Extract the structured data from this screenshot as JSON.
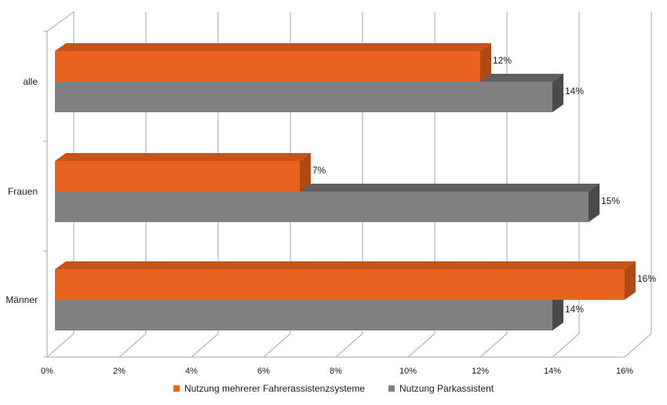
{
  "chart_data": {
    "type": "bar",
    "orientation": "horizontal",
    "three_d": true,
    "categories": [
      "alle",
      "Frauen",
      "Männer"
    ],
    "series": [
      {
        "name": "Nutzung mehrerer Fahrerassistenzsysteme",
        "values": [
          12,
          7,
          16
        ],
        "labels": [
          "12%",
          "7%",
          "16%"
        ],
        "color": "#E8631F"
      },
      {
        "name": "Nutzung Parkassistent",
        "values": [
          14,
          15,
          14
        ],
        "labels": [
          "14%",
          "15%",
          "14%"
        ],
        "color": "#808080"
      }
    ],
    "x_ticks": [
      "0%",
      "2%",
      "4%",
      "6%",
      "8%",
      "10%",
      "12%",
      "14%",
      "16%"
    ],
    "xlim": [
      0,
      16
    ],
    "xlabel": "",
    "ylabel": "",
    "grid": "vertical",
    "legend_position": "bottom"
  },
  "colors": {
    "orange": "#E8631F",
    "orange_top": "#C6541A",
    "orange_side": "#B04A15",
    "gray": "#808080",
    "gray_top": "#5F5F5F",
    "gray_side": "#4A4A4A",
    "grid": "#A6A6A6"
  }
}
